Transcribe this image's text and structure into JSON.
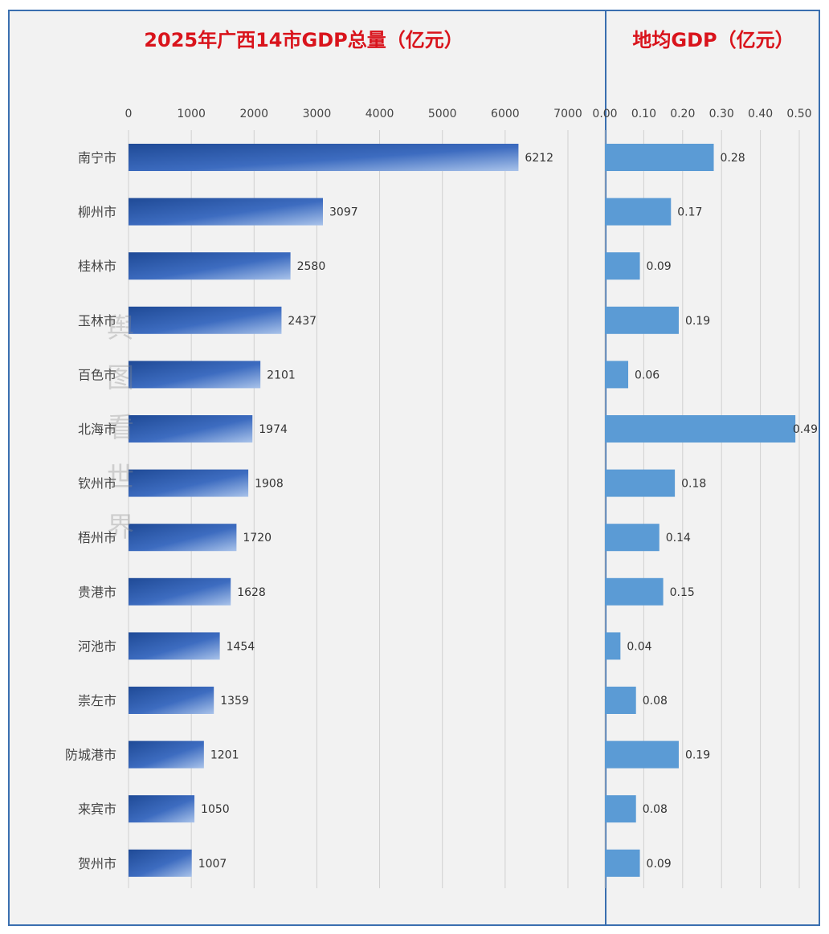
{
  "chart_data": [
    {
      "type": "bar",
      "orientation": "horizontal",
      "title": "2025年广西14市GDP总量（亿元）",
      "categories": [
        "南宁市",
        "柳州市",
        "桂林市",
        "玉林市",
        "百色市",
        "北海市",
        "钦州市",
        "梧州市",
        "贵港市",
        "河池市",
        "崇左市",
        "防城港市",
        "来宾市",
        "贺州市"
      ],
      "values": [
        6212,
        3097,
        2580,
        2437,
        2101,
        1974,
        1908,
        1720,
        1628,
        1454,
        1359,
        1201,
        1050,
        1007
      ],
      "xlim": [
        0,
        7000
      ],
      "ticks": [
        "0",
        "1000",
        "2000",
        "3000",
        "4000",
        "5000",
        "6000",
        "7000"
      ],
      "color": "#2f5fb3",
      "grid": true
    },
    {
      "type": "bar",
      "orientation": "horizontal",
      "title": "地均GDP（亿元）",
      "categories": [
        "南宁市",
        "柳州市",
        "桂林市",
        "玉林市",
        "百色市",
        "北海市",
        "钦州市",
        "梧州市",
        "贵港市",
        "河池市",
        "崇左市",
        "防城港市",
        "来宾市",
        "贺州市"
      ],
      "values": [
        0.28,
        0.17,
        0.09,
        0.19,
        0.06,
        0.49,
        0.18,
        0.14,
        0.15,
        0.04,
        0.08,
        0.19,
        0.08,
        0.09
      ],
      "value_labels": [
        "0.28",
        "0.17",
        "0.09",
        "0.19",
        "0.06",
        "0.49",
        "0.18",
        "0.14",
        "0.15",
        "0.04",
        "0.08",
        "0.19",
        "0.08",
        "0.09"
      ],
      "xlim": [
        0,
        0.5
      ],
      "ticks": [
        "0.00",
        "0.10",
        "0.20",
        "0.30",
        "0.40",
        "0.50"
      ],
      "color": "#5b9bd5",
      "grid": true
    }
  ],
  "watermark": "舆图看世界",
  "colors": {
    "title": "#d9141c",
    "frame": "#3a6fb0"
  }
}
